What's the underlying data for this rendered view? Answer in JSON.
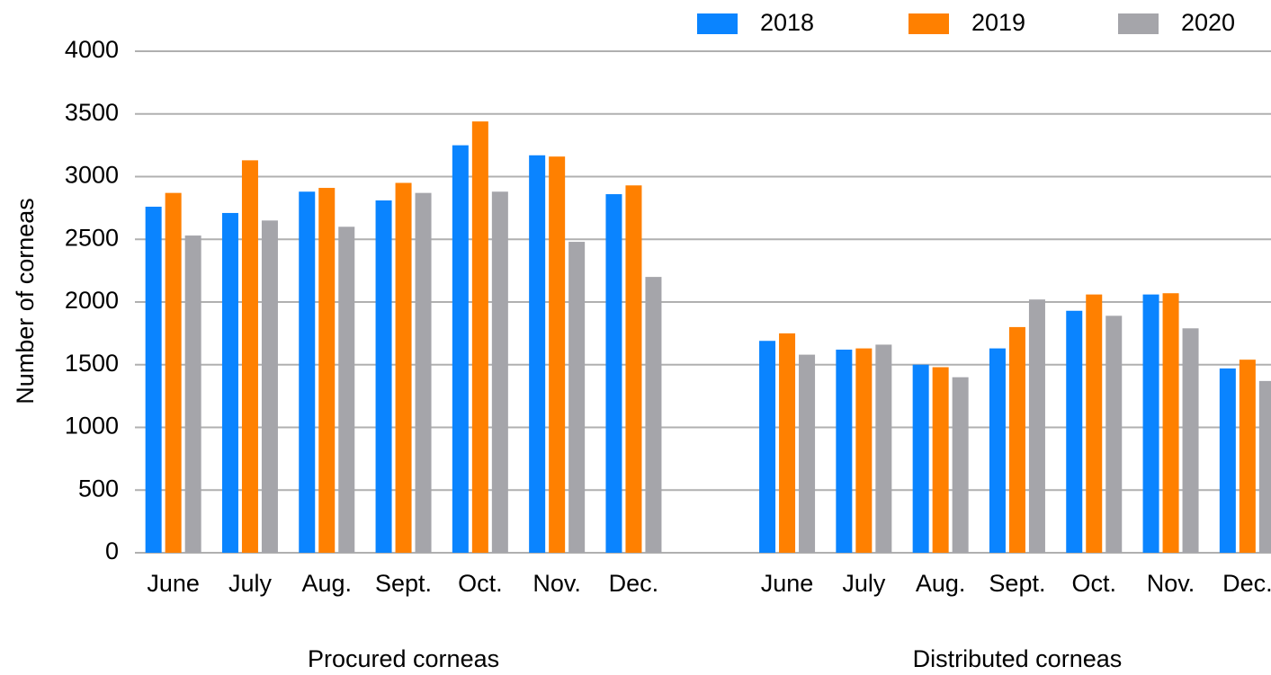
{
  "chart_data": {
    "type": "bar",
    "y_label": "Number of corneas",
    "group_labels": [
      "Procured corneas",
      "Distributed corneas"
    ],
    "categories": [
      "June",
      "July",
      "Aug.",
      "Sept.",
      "Oct.",
      "Nov.",
      "Dec.",
      null,
      "June",
      "July",
      "Aug.",
      "Sept.",
      "Oct.",
      "Nov.",
      "Dec."
    ],
    "series": [
      {
        "name": "2018",
        "color": "#0a84ff",
        "values": [
          2760,
          2710,
          2880,
          2810,
          3250,
          3170,
          2860,
          null,
          1690,
          1620,
          1500,
          1630,
          1930,
          2060,
          1470
        ]
      },
      {
        "name": "2019",
        "color": "#ff8000",
        "values": [
          2870,
          3130,
          2910,
          2950,
          3440,
          3160,
          2930,
          null,
          1750,
          1630,
          1480,
          1800,
          2060,
          2070,
          1540
        ]
      },
      {
        "name": "2020",
        "color": "#a5a5aa",
        "values": [
          2530,
          2650,
          2600,
          2870,
          2880,
          2480,
          2200,
          null,
          1580,
          1660,
          1400,
          2020,
          1890,
          1790,
          1370
        ]
      }
    ],
    "ylim": [
      0,
      4000
    ],
    "yticks": [
      0,
      500,
      1000,
      1500,
      2000,
      2500,
      3000,
      3500,
      4000
    ],
    "grid": true,
    "legend": "top-right"
  }
}
